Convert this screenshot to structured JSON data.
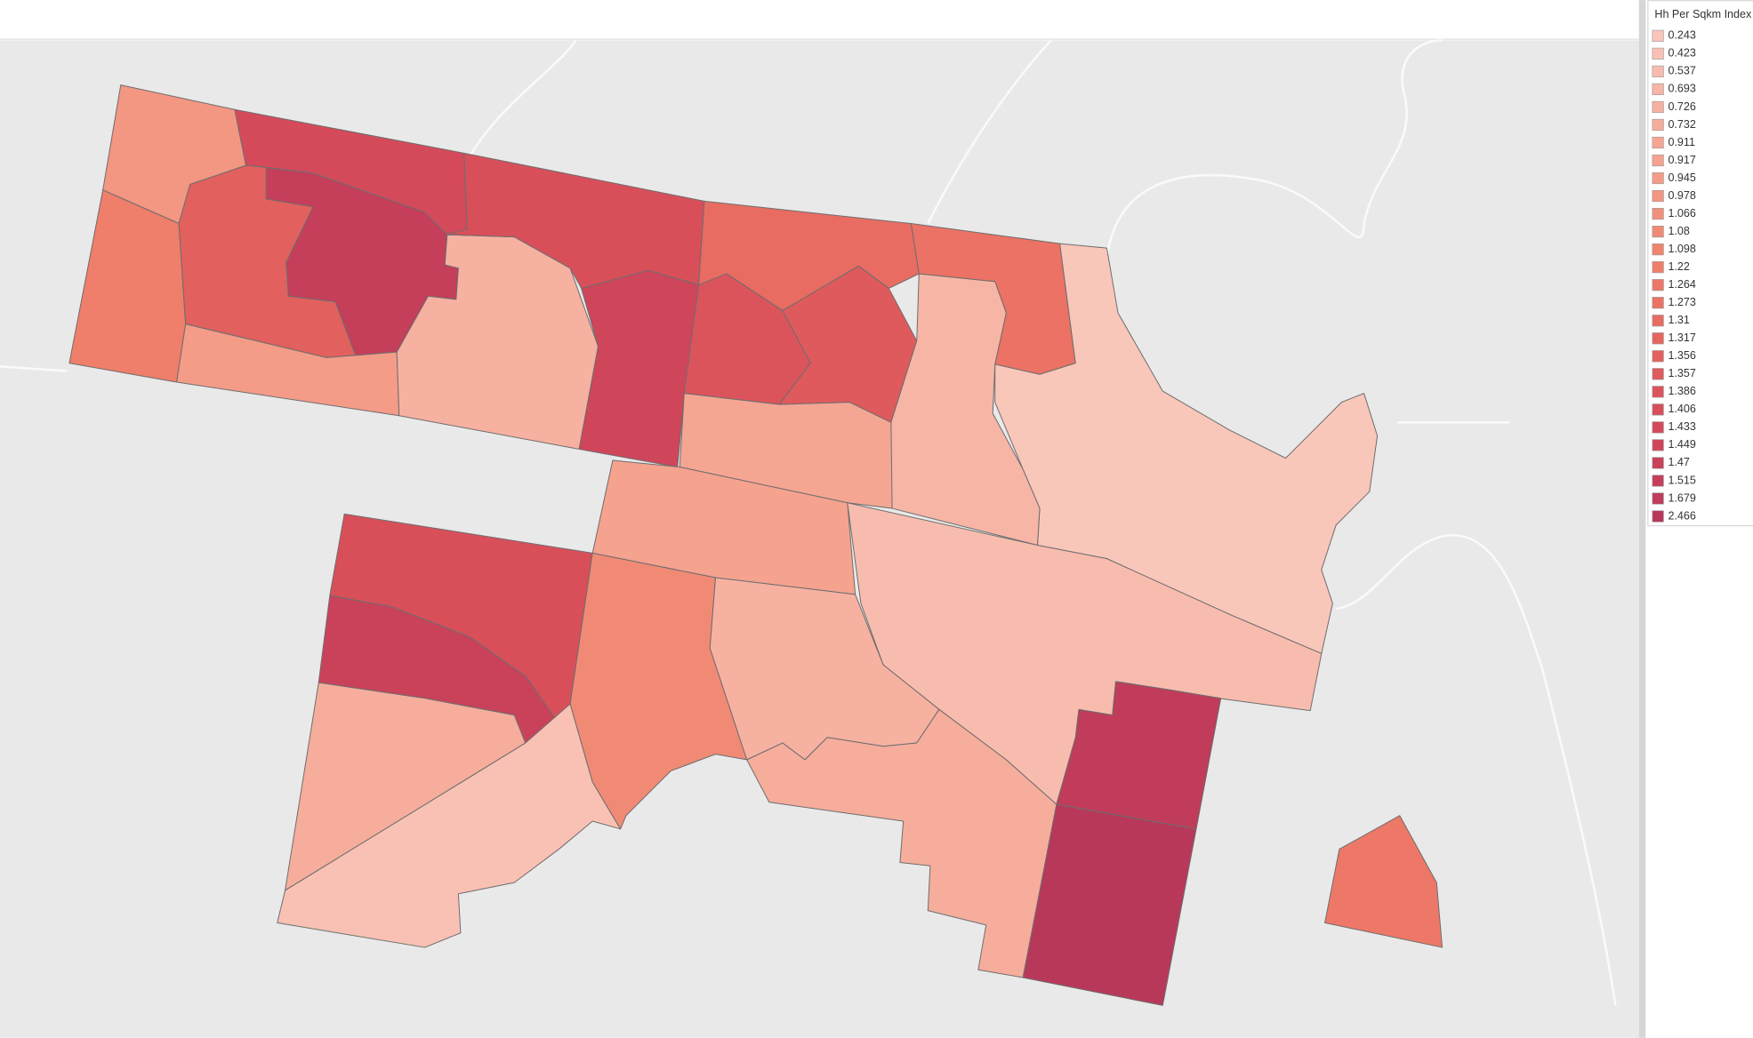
{
  "map": {
    "legend": {
      "title": "Hh Per Sqkm Index (",
      "items": [
        {
          "value": 0.243,
          "color": "#f9c6ba"
        },
        {
          "value": 0.423,
          "color": "#f9c1b4"
        },
        {
          "value": 0.537,
          "color": "#f8bcae"
        },
        {
          "value": 0.693,
          "color": "#f7b5a6"
        },
        {
          "value": 0.726,
          "color": "#f7b1a1"
        },
        {
          "value": 0.732,
          "color": "#f6ad9c"
        },
        {
          "value": 0.911,
          "color": "#f5a693"
        },
        {
          "value": 0.917,
          "color": "#f5a28f"
        },
        {
          "value": 0.945,
          "color": "#f49c88"
        },
        {
          "value": 0.978,
          "color": "#f39682"
        },
        {
          "value": 1.066,
          "color": "#f2907b"
        },
        {
          "value": 1.08,
          "color": "#f18a75"
        },
        {
          "value": 1.098,
          "color": "#f0846f"
        },
        {
          "value": 1.22,
          "color": "#ef7e6a"
        },
        {
          "value": 1.264,
          "color": "#ed7867"
        },
        {
          "value": 1.273,
          "color": "#eb7264"
        },
        {
          "value": 1.31,
          "color": "#e86c62"
        },
        {
          "value": 1.317,
          "color": "#e5665f"
        },
        {
          "value": 1.356,
          "color": "#e2605d"
        },
        {
          "value": 1.357,
          "color": "#df5a5c"
        },
        {
          "value": 1.386,
          "color": "#dc545b"
        },
        {
          "value": 1.406,
          "color": "#d84f5a"
        },
        {
          "value": 1.433,
          "color": "#d44a5a"
        },
        {
          "value": 1.449,
          "color": "#cf455a"
        },
        {
          "value": 1.47,
          "color": "#ca415a"
        },
        {
          "value": 1.515,
          "color": "#c53e5a"
        },
        {
          "value": 1.679,
          "color": "#c03c5a"
        },
        {
          "value": 2.466,
          "color": "#b8385a"
        }
      ]
    },
    "region_values": [
      0.978,
      1.22,
      1.433,
      1.356,
      1.515,
      0.945,
      0.726,
      1.406,
      1.449,
      1.31,
      1.386,
      1.357,
      1.273,
      0.243,
      0.693,
      0.911,
      0.917,
      0.537,
      1.406,
      1.47,
      0.732,
      0.423,
      1.08,
      0.726,
      0.732,
      1.679,
      2.466,
      1.264
    ]
  }
}
